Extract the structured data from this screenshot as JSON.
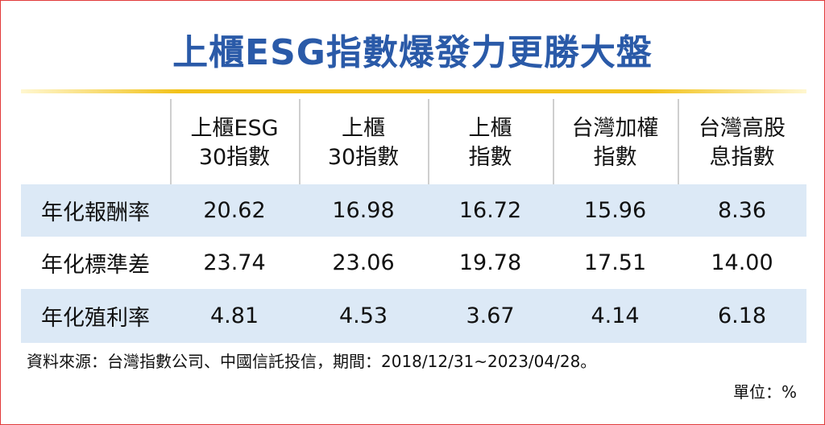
{
  "title": "上櫃ESG指數爆發力更勝大盤",
  "table": {
    "headers": [
      [
        "上櫃ESG",
        "30指數"
      ],
      [
        "上櫃",
        "30指數"
      ],
      [
        "上櫃",
        "指數"
      ],
      [
        "台灣加權",
        "指數"
      ],
      [
        "台灣高股",
        "息指數"
      ]
    ],
    "rows": [
      {
        "label": "年化報酬率",
        "cells": [
          "20.62",
          "16.98",
          "16.72",
          "15.96",
          "8.36"
        ]
      },
      {
        "label": "年化標準差",
        "cells": [
          "23.74",
          "23.06",
          "19.78",
          "17.51",
          "14.00"
        ]
      },
      {
        "label": "年化殖利率",
        "cells": [
          "4.81",
          "4.53",
          "3.67",
          "4.14",
          "6.18"
        ]
      }
    ]
  },
  "source": "資料來源：台灣指數公司、中國信託投信，期間：2018/12/31~2023/04/28。",
  "unit": "單位：%"
}
